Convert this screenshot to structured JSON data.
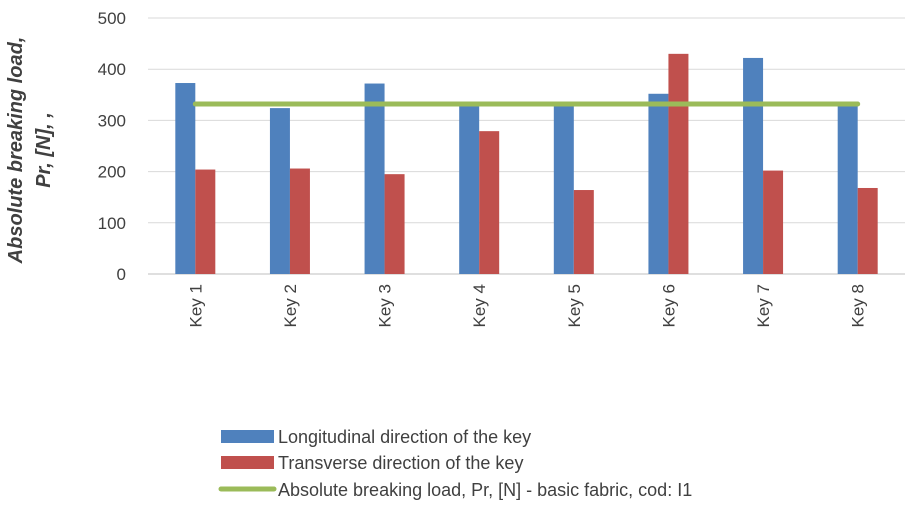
{
  "chart_data": {
    "type": "bar",
    "ylabel_lines": [
      "Absolute breaking load,",
      "Pr, [N], ,"
    ],
    "ylim": [
      0,
      500
    ],
    "yticks": [
      0,
      100,
      200,
      300,
      400,
      500
    ],
    "grid": true,
    "legend_position": "bottom",
    "categories": [
      "Key 1",
      "Key 2",
      "Key 3",
      "Key  4",
      "Key 5",
      "Key 6",
      "Key 7",
      "Key 8"
    ],
    "series": [
      {
        "name": "Longitudinal direction of the key",
        "type": "bar",
        "color": "#4f81bd",
        "values": [
          373,
          324,
          372,
          330,
          333,
          352,
          422,
          330
        ]
      },
      {
        "name": "Transverse direction of the key",
        "type": "bar",
        "color": "#c0504d",
        "values": [
          204,
          206,
          195,
          279,
          164,
          430,
          202,
          168
        ]
      },
      {
        "name": "Absolute breaking load, Pr, [N] - basic fabric, cod: I1",
        "type": "line",
        "color": "#9bbb59",
        "values": [
          332,
          332,
          332,
          332,
          332,
          332,
          332,
          332
        ]
      }
    ]
  }
}
